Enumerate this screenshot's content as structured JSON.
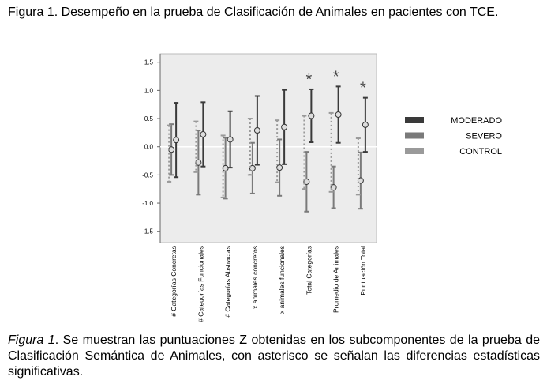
{
  "chart_data": {
    "type": "errorbar",
    "title": "Figura 1. Desempeño en la prueba de Clasificación de Animales en pacientes con TCE.",
    "caption_label": "Figura 1",
    "caption": ". Se muestran las puntuaciones Z obtenidas en los subcomponentes de la prueba de Clasificación Semántica de Animales, con asterisco se señalan las diferencias estadísticas significativas.",
    "categories": [
      "# Categorías Concretas",
      "# Categorías Funcionales",
      "# Categorías Abstractas",
      "x animales concretos",
      "x animales funcionales",
      "Total Categorías",
      "Promedio de Animales",
      "Puntuación Total"
    ],
    "significance": [
      null,
      null,
      null,
      null,
      null,
      "*",
      "*",
      "*"
    ],
    "ylim": [
      -1.7,
      1.65
    ],
    "yticks": [
      1.5,
      {
        "value": 1.0,
        "label": "1.0"
      },
      0.5,
      {
        "value": 0.0,
        "label": "0.0"
      },
      -0.5,
      {
        "value": -1.0,
        "label": "-1.0"
      },
      -1.5
    ],
    "series": [
      {
        "name": "MODERADO",
        "color": "#3a3a3a",
        "values": [
          0.12,
          0.22,
          0.13,
          0.29,
          0.35,
          0.55,
          0.57,
          0.39
        ],
        "errors": [
          0.66,
          0.57,
          0.5,
          0.61,
          0.66,
          0.47,
          0.5,
          0.48
        ]
      },
      {
        "name": "SEVERO",
        "color": "#7a7a7a",
        "values": [
          -0.05,
          -0.28,
          -0.38,
          -0.38,
          -0.37,
          -0.62,
          -0.72,
          -0.6
        ],
        "errors": [
          0.45,
          0.57,
          0.54,
          0.45,
          0.5,
          0.53,
          0.37,
          0.5
        ]
      },
      {
        "name": "CONTROL",
        "color": "#9a9a9a",
        "values": [
          -0.12,
          0.0,
          -0.35,
          0.0,
          -0.08,
          -0.1,
          -0.1,
          -0.35
        ],
        "errors": [
          0.5,
          0.45,
          0.55,
          0.5,
          0.55,
          0.65,
          0.7,
          0.5
        ]
      }
    ],
    "legend": "right"
  }
}
